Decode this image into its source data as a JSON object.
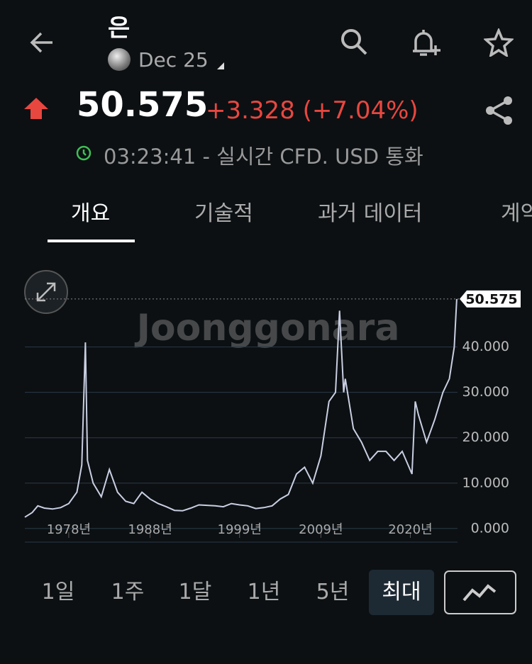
{
  "header": {
    "title": "은",
    "contract": "Dec 25",
    "price": "50.575",
    "change": "+3.328",
    "change_pct": "(+7.04%)",
    "time": "03:23:41",
    "status": "- 실시간 CFD. USD 통화"
  },
  "tabs": [
    "개요",
    "기술적",
    "과거 데이터",
    "계약"
  ],
  "watermark": "Joonggonara",
  "chart_data": {
    "type": "line",
    "color": "#c9cfe2",
    "x": [
      1972.6,
      1973.5,
      1974.2,
      1975,
      1976,
      1977,
      1978,
      1979,
      1979.6,
      1980.05,
      1980.3,
      1981,
      1982,
      1983,
      1984,
      1985,
      1986,
      1987,
      1988,
      1989,
      1990,
      1991,
      1992,
      1993,
      1994,
      1995,
      1996,
      1997,
      1998,
      1999,
      2000,
      2001,
      2002,
      2003,
      2004,
      2005,
      2006,
      2007,
      2008,
      2009,
      2010,
      2010.8,
      2011.3,
      2011.8,
      2012,
      2013,
      2014,
      2015,
      2016,
      2017,
      2018,
      2019,
      2020.2,
      2020.6,
      2021,
      2022,
      2023,
      2024,
      2024.8,
      2025.4,
      2025.7
    ],
    "values": [
      2.5,
      3.5,
      5,
      4.5,
      4.3,
      4.6,
      5.5,
      8,
      14,
      41,
      15,
      10,
      7,
      13,
      8,
      6,
      5.5,
      8,
      6.5,
      5.5,
      4.8,
      4,
      3.9,
      4.5,
      5.2,
      5.1,
      5,
      4.8,
      5.5,
      5.2,
      5,
      4.4,
      4.6,
      5,
      6.5,
      7.5,
      12,
      13.5,
      10,
      16,
      28,
      30,
      48,
      30,
      33,
      22,
      19,
      15,
      17,
      17,
      15,
      17,
      12,
      28,
      25,
      19,
      24,
      30,
      33,
      40,
      50.575
    ],
    "last_price": 50.575,
    "xlim": [
      1972.6,
      2025.8
    ],
    "ylim": [
      -3,
      54
    ],
    "xticks": [
      {
        "value": 1978,
        "label": "1978년"
      },
      {
        "value": 1988,
        "label": "1988년"
      },
      {
        "value": 1999,
        "label": "1999년"
      },
      {
        "value": 2009,
        "label": "2009년"
      },
      {
        "value": 2020,
        "label": "2020년"
      }
    ],
    "yticks": [
      {
        "value": 0,
        "label": "0.000"
      },
      {
        "value": 10,
        "label": "10.000"
      },
      {
        "value": 20,
        "label": "20.000"
      },
      {
        "value": 30,
        "label": "30.000"
      },
      {
        "value": 40,
        "label": "40.000"
      }
    ],
    "grid": true
  },
  "ranges": [
    "1일",
    "1주",
    "1달",
    "1년",
    "5년",
    "최대"
  ]
}
